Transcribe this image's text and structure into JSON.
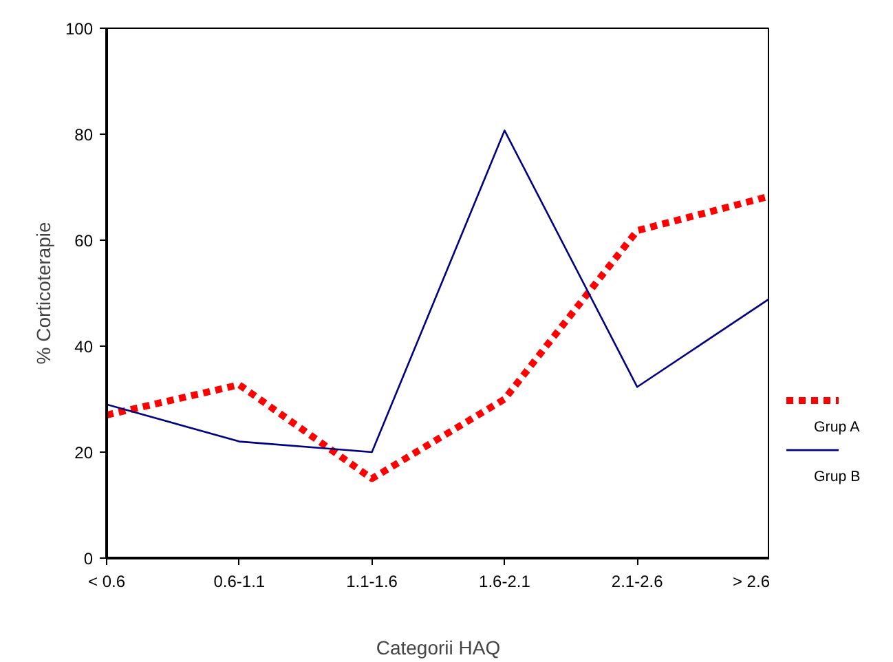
{
  "chart_data": {
    "type": "line",
    "xlabel": "Categorii HAQ",
    "ylabel": "% Corticoterapie",
    "categories": [
      "< 0.6",
      "0.6-1.1",
      "1.1-1.6",
      "1.6-2.1",
      "2.1-2.6",
      "> 2.6"
    ],
    "ylim": [
      0,
      100
    ],
    "yticks": [
      0,
      20,
      40,
      60,
      80,
      100
    ],
    "grid": false,
    "legend": "bottom right",
    "marker": "none",
    "series": [
      {
        "name": "Grup A",
        "color": "#ff0000",
        "line_style": "dotted",
        "values": [
          27,
          32.7,
          15,
          30,
          61.8,
          68.3
        ]
      },
      {
        "name": "Grup B",
        "color": "#000080",
        "line_style": "solid",
        "values": [
          29,
          22,
          20,
          80.7,
          32.3,
          49
        ]
      }
    ]
  }
}
